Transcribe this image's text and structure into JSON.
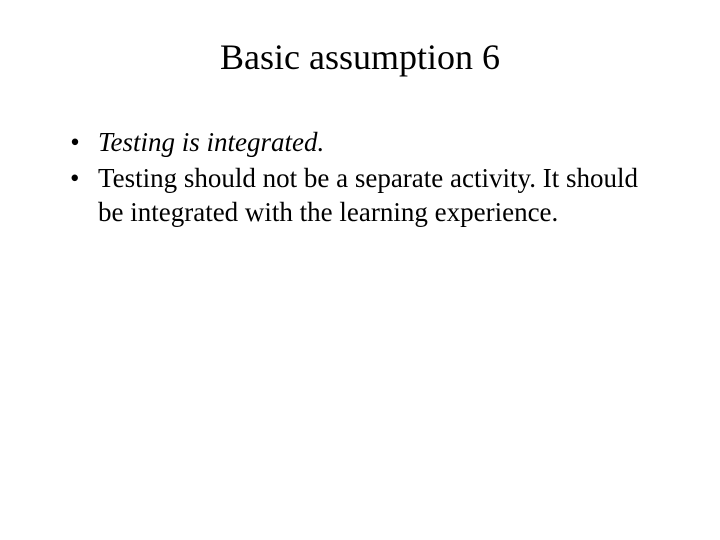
{
  "slide": {
    "title": "Basic assumption 6",
    "bullets": [
      {
        "text": "Testing is integrated.",
        "italic": true
      },
      {
        "text": "Testing should not be a separate activity. It should be integrated with the learning experience.",
        "italic": false
      }
    ],
    "styling": {
      "background_color": "#ffffff",
      "text_color": "#000000",
      "title_fontsize": 36,
      "body_fontsize": 27,
      "font_family": "Times New Roman"
    }
  }
}
